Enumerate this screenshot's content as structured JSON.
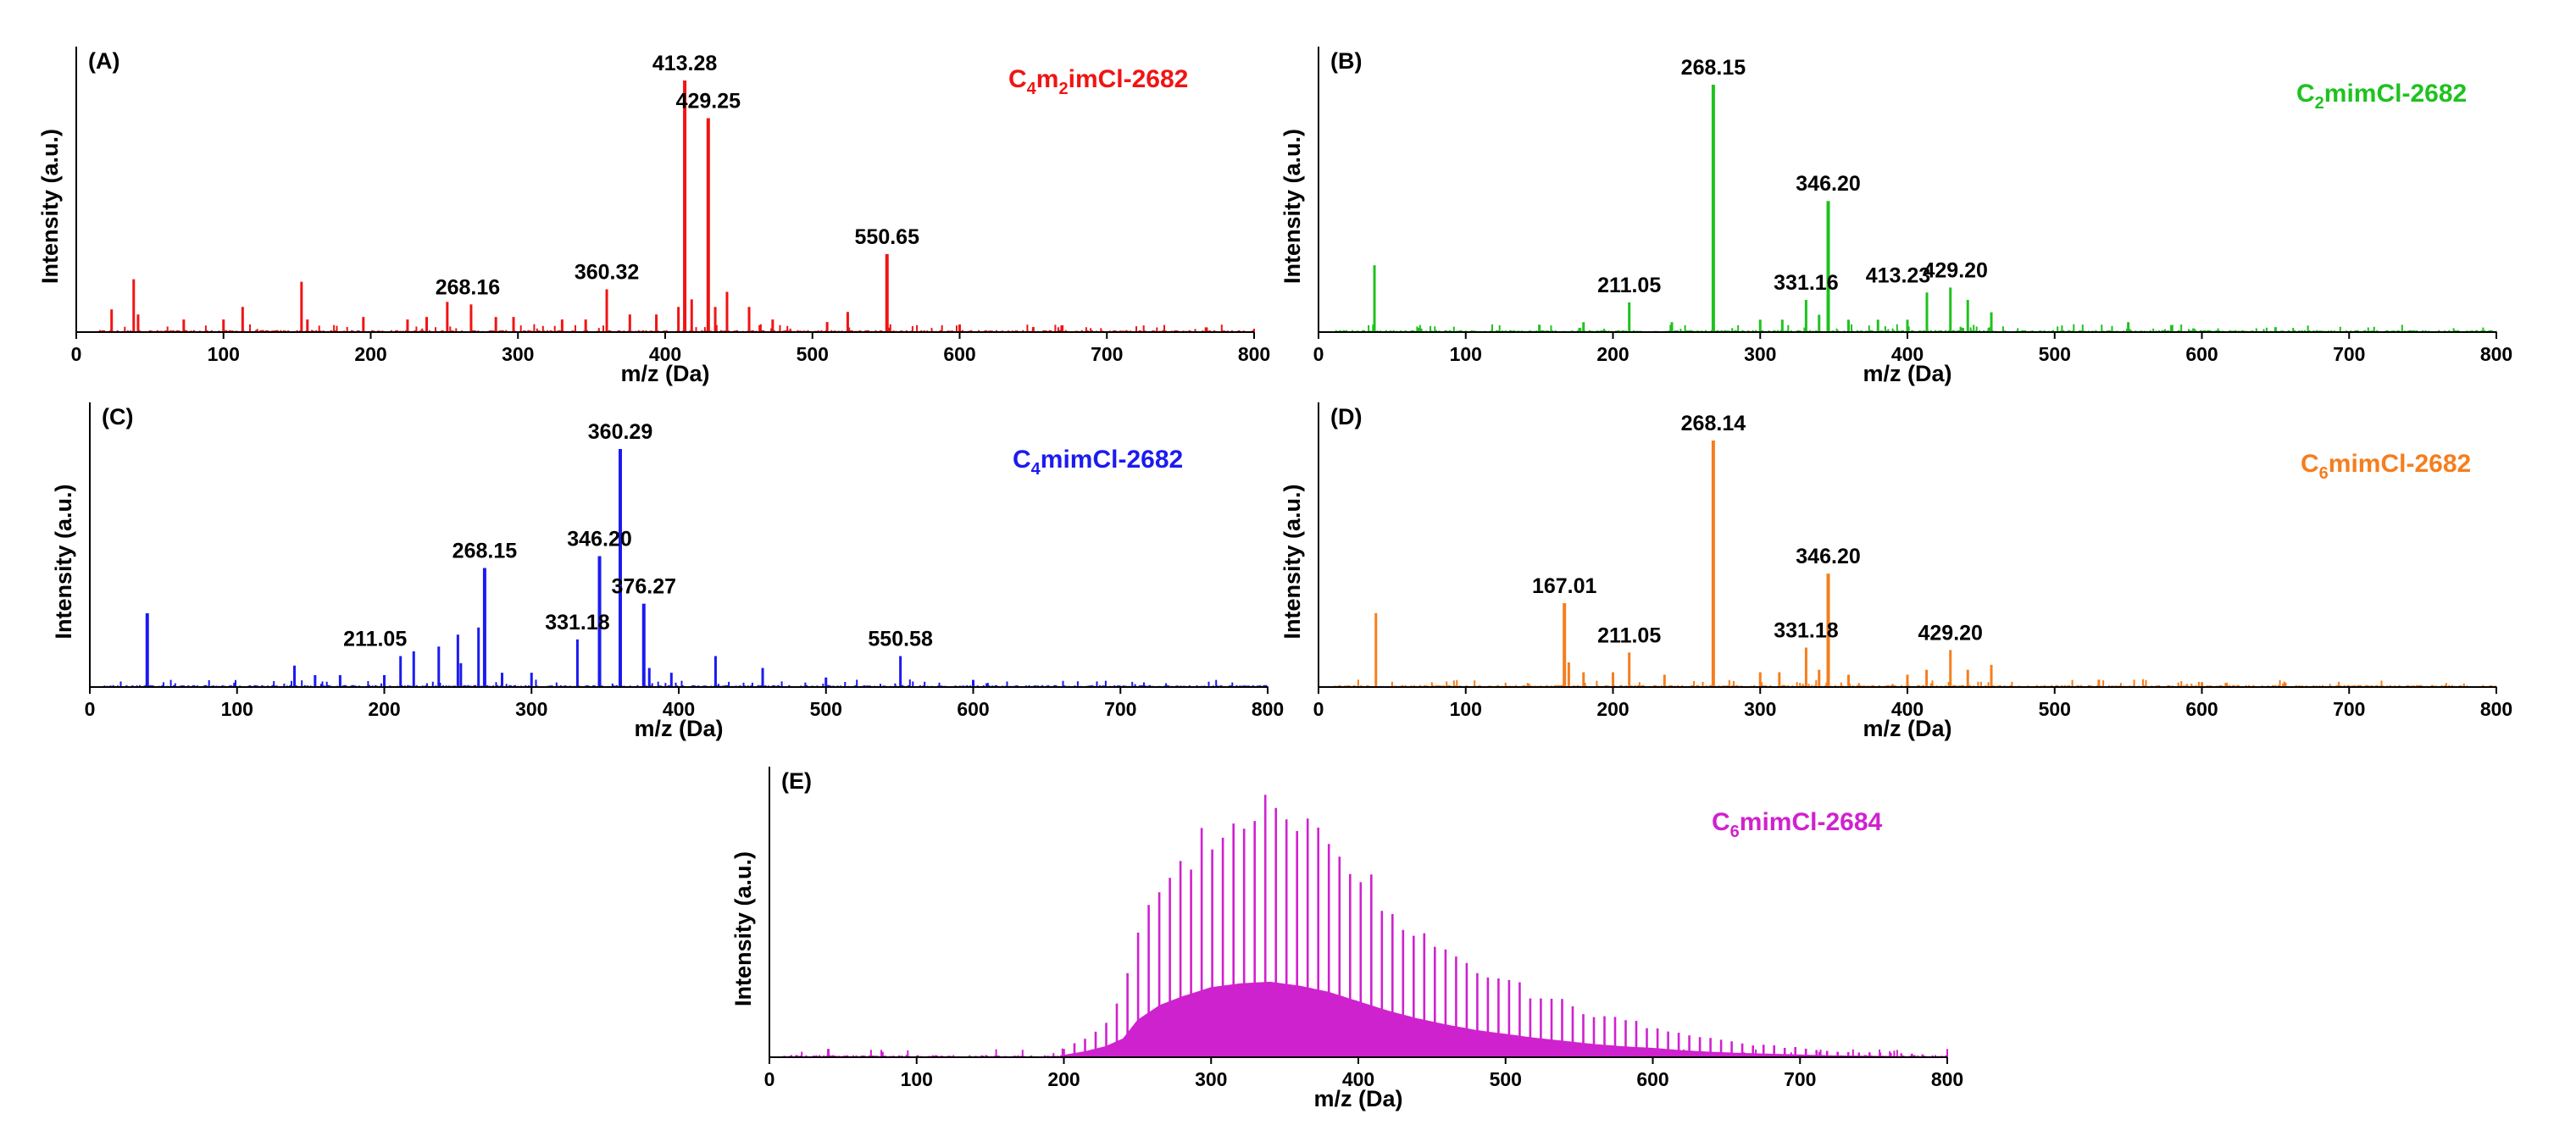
{
  "chart_data": [
    {
      "panel": "(A)",
      "type": "line",
      "title_parts": [
        "C",
        "4",
        "m",
        "2",
        "imCl-2682"
      ],
      "color": "#f01414",
      "xlabel": "m/z (Da)",
      "ylabel": "Intensity (a.u.)",
      "xlim": [
        0,
        800
      ],
      "xticks": [
        "0",
        "100",
        "200",
        "300",
        "400",
        "500",
        "600",
        "700",
        "800"
      ],
      "ylim": [
        0,
        1
      ],
      "baseline_range": [
        15,
        800
      ],
      "peaks": [
        {
          "x": 24,
          "y": 0.09
        },
        {
          "x": 39,
          "y": 0.21
        },
        {
          "x": 42,
          "y": 0.07
        },
        {
          "x": 73,
          "y": 0.05
        },
        {
          "x": 100,
          "y": 0.05
        },
        {
          "x": 113,
          "y": 0.1
        },
        {
          "x": 153,
          "y": 0.2
        },
        {
          "x": 157,
          "y": 0.05
        },
        {
          "x": 195,
          "y": 0.06
        },
        {
          "x": 225,
          "y": 0.05
        },
        {
          "x": 238,
          "y": 0.06
        },
        {
          "x": 252,
          "y": 0.12
        },
        {
          "x": 268.16,
          "y": 0.11
        },
        {
          "x": 285,
          "y": 0.06
        },
        {
          "x": 297,
          "y": 0.06
        },
        {
          "x": 330,
          "y": 0.05
        },
        {
          "x": 346,
          "y": 0.05
        },
        {
          "x": 360.32,
          "y": 0.17
        },
        {
          "x": 376,
          "y": 0.07
        },
        {
          "x": 394,
          "y": 0.07
        },
        {
          "x": 409,
          "y": 0.1
        },
        {
          "x": 413.28,
          "y": 1.0
        },
        {
          "x": 418,
          "y": 0.13
        },
        {
          "x": 429.25,
          "y": 0.85
        },
        {
          "x": 434,
          "y": 0.1
        },
        {
          "x": 442,
          "y": 0.16
        },
        {
          "x": 457,
          "y": 0.1
        },
        {
          "x": 473,
          "y": 0.05
        },
        {
          "x": 510,
          "y": 0.04
        },
        {
          "x": 524,
          "y": 0.08
        },
        {
          "x": 550.65,
          "y": 0.31
        },
        {
          "x": 600,
          "y": 0.03
        },
        {
          "x": 650,
          "y": 0.02
        }
      ],
      "labels": [
        {
          "text": "413.28",
          "x": 413.28
        },
        {
          "text": "429.25",
          "x": 429.25
        },
        {
          "text": "550.65",
          "x": 550.65
        },
        {
          "text": "360.32",
          "x": 360.32
        },
        {
          "text": "268.16",
          "x": 268.16
        }
      ]
    },
    {
      "panel": "(B)",
      "type": "line",
      "title_parts": [
        "C",
        "2",
        "mimCl-2682"
      ],
      "color": "#1ec21e",
      "xlabel": "m/z (Da)",
      "ylabel": "Intensity (a.u.)",
      "xlim": [
        0,
        800
      ],
      "xticks": [
        "0",
        "100",
        "200",
        "300",
        "400",
        "500",
        "600",
        "700",
        "800"
      ],
      "ylim": [
        0,
        1
      ],
      "baseline_range": [
        10,
        800
      ],
      "peaks": [
        {
          "x": 38,
          "y": 0.27
        },
        {
          "x": 150,
          "y": 0.03
        },
        {
          "x": 180,
          "y": 0.04
        },
        {
          "x": 211.05,
          "y": 0.12
        },
        {
          "x": 240,
          "y": 0.04
        },
        {
          "x": 268.15,
          "y": 1.0
        },
        {
          "x": 300,
          "y": 0.05
        },
        {
          "x": 315,
          "y": 0.05
        },
        {
          "x": 331.16,
          "y": 0.13
        },
        {
          "x": 340,
          "y": 0.07
        },
        {
          "x": 346.2,
          "y": 0.53
        },
        {
          "x": 360,
          "y": 0.05
        },
        {
          "x": 380,
          "y": 0.05
        },
        {
          "x": 400,
          "y": 0.05
        },
        {
          "x": 413.23,
          "y": 0.16
        },
        {
          "x": 429.2,
          "y": 0.18
        },
        {
          "x": 441,
          "y": 0.13
        },
        {
          "x": 457,
          "y": 0.08
        },
        {
          "x": 550,
          "y": 0.04
        },
        {
          "x": 650,
          "y": 0.02
        }
      ],
      "labels": [
        {
          "text": "268.15",
          "x": 268.15
        },
        {
          "text": "346.20",
          "x": 346.2
        },
        {
          "text": "211.05",
          "x": 211.05
        },
        {
          "text": "331.16",
          "x": 331.16
        },
        {
          "text": "413.23",
          "x": 413.23
        },
        {
          "text": "429.20",
          "x": 429.2
        }
      ]
    },
    {
      "panel": "(C)",
      "type": "line",
      "title_parts": [
        "C",
        "4",
        "mimCl-2682"
      ],
      "color": "#1b1bf0",
      "xlabel": "m/z (Da)",
      "ylabel": "Intensity (a.u.)",
      "xlim": [
        0,
        800
      ],
      "xticks": [
        "0",
        "100",
        "200",
        "300",
        "400",
        "500",
        "600",
        "700",
        "800"
      ],
      "ylim": [
        0,
        1
      ],
      "baseline_range": [
        10,
        800
      ],
      "peaks": [
        {
          "x": 39,
          "y": 0.31
        },
        {
          "x": 139,
          "y": 0.09
        },
        {
          "x": 153,
          "y": 0.05
        },
        {
          "x": 170,
          "y": 0.05
        },
        {
          "x": 200,
          "y": 0.05
        },
        {
          "x": 211.05,
          "y": 0.13
        },
        {
          "x": 220,
          "y": 0.15
        },
        {
          "x": 237,
          "y": 0.17
        },
        {
          "x": 250,
          "y": 0.22
        },
        {
          "x": 252,
          "y": 0.1
        },
        {
          "x": 264,
          "y": 0.25
        },
        {
          "x": 268.15,
          "y": 0.5
        },
        {
          "x": 280,
          "y": 0.06
        },
        {
          "x": 300,
          "y": 0.06
        },
        {
          "x": 331.18,
          "y": 0.2
        },
        {
          "x": 346.2,
          "y": 0.55
        },
        {
          "x": 360.29,
          "y": 1.0
        },
        {
          "x": 376.27,
          "y": 0.35
        },
        {
          "x": 380,
          "y": 0.08
        },
        {
          "x": 395,
          "y": 0.06
        },
        {
          "x": 425,
          "y": 0.13
        },
        {
          "x": 457,
          "y": 0.08
        },
        {
          "x": 500,
          "y": 0.04
        },
        {
          "x": 550.58,
          "y": 0.13
        },
        {
          "x": 600,
          "y": 0.03
        }
      ],
      "labels": [
        {
          "text": "360.29",
          "x": 360.29
        },
        {
          "text": "268.15",
          "x": 268.15
        },
        {
          "text": "346.20",
          "x": 346.2
        },
        {
          "text": "376.27",
          "x": 376.27
        },
        {
          "text": "211.05",
          "x": 211.05
        },
        {
          "text": "331.18",
          "x": 331.18
        },
        {
          "text": "550.58",
          "x": 550.58
        }
      ]
    },
    {
      "panel": "(D)",
      "type": "line",
      "title_parts": [
        "C",
        "6",
        "mimCl-2682"
      ],
      "color": "#f57e1e",
      "xlabel": "m/z (Da)",
      "ylabel": "Intensity (a.u.)",
      "xlim": [
        0,
        800
      ],
      "xticks": [
        "0",
        "100",
        "200",
        "300",
        "400",
        "500",
        "600",
        "700",
        "800"
      ],
      "ylim": [
        0,
        1
      ],
      "baseline_range": [
        10,
        800
      ],
      "peaks": [
        {
          "x": 39,
          "y": 0.3
        },
        {
          "x": 167.01,
          "y": 0.34
        },
        {
          "x": 170,
          "y": 0.1
        },
        {
          "x": 180,
          "y": 0.06
        },
        {
          "x": 200,
          "y": 0.06
        },
        {
          "x": 211.05,
          "y": 0.14
        },
        {
          "x": 235,
          "y": 0.05
        },
        {
          "x": 268.14,
          "y": 1.0
        },
        {
          "x": 300,
          "y": 0.06
        },
        {
          "x": 313,
          "y": 0.06
        },
        {
          "x": 331.18,
          "y": 0.16
        },
        {
          "x": 340,
          "y": 0.07
        },
        {
          "x": 346.2,
          "y": 0.46
        },
        {
          "x": 360,
          "y": 0.05
        },
        {
          "x": 400,
          "y": 0.05
        },
        {
          "x": 413,
          "y": 0.07
        },
        {
          "x": 429.2,
          "y": 0.15
        },
        {
          "x": 441,
          "y": 0.07
        },
        {
          "x": 457,
          "y": 0.09
        },
        {
          "x": 530,
          "y": 0.03
        },
        {
          "x": 600,
          "y": 0.02
        }
      ],
      "labels": [
        {
          "text": "268.14",
          "x": 268.14
        },
        {
          "text": "346.20",
          "x": 346.2
        },
        {
          "text": "167.01",
          "x": 167.01
        },
        {
          "text": "211.05",
          "x": 211.05
        },
        {
          "text": "331.18",
          "x": 331.18
        },
        {
          "text": "429.20",
          "x": 429.2
        }
      ]
    },
    {
      "panel": "(E)",
      "type": "line",
      "title_parts": [
        "C",
        "6",
        "mimCl-2684"
      ],
      "color": "#cf22cf",
      "xlabel": "m/z (Da)",
      "ylabel": "Intensity (a.u.)",
      "xlim": [
        0,
        800
      ],
      "xticks": [
        "0",
        "100",
        "200",
        "300",
        "400",
        "500",
        "600",
        "700",
        "800"
      ],
      "ylim": [
        0,
        1
      ],
      "baseline_range": [
        10,
        800
      ],
      "envelope": {
        "start": 200,
        "end": 790,
        "spacing": 7.2,
        "points": [
          [
            200,
            0.03
          ],
          [
            215,
            0.08
          ],
          [
            228,
            0.14
          ],
          [
            240,
            0.24
          ],
          [
            250,
            0.48
          ],
          [
            265,
            0.67
          ],
          [
            280,
            0.78
          ],
          [
            300,
            0.9
          ],
          [
            320,
            0.95
          ],
          [
            340,
            0.97
          ],
          [
            360,
            0.92
          ],
          [
            380,
            0.84
          ],
          [
            400,
            0.72
          ],
          [
            420,
            0.6
          ],
          [
            440,
            0.5
          ],
          [
            460,
            0.42
          ],
          [
            480,
            0.35
          ],
          [
            500,
            0.3
          ],
          [
            520,
            0.25
          ],
          [
            540,
            0.21
          ],
          [
            560,
            0.17
          ],
          [
            580,
            0.14
          ],
          [
            600,
            0.12
          ],
          [
            620,
            0.09
          ],
          [
            640,
            0.07
          ],
          [
            660,
            0.055
          ],
          [
            680,
            0.045
          ],
          [
            700,
            0.035
          ],
          [
            720,
            0.025
          ],
          [
            750,
            0.018
          ],
          [
            790,
            0.01
          ]
        ]
      },
      "peaks": [
        {
          "x": 40,
          "y": 0.03
        }
      ],
      "labels": []
    }
  ]
}
